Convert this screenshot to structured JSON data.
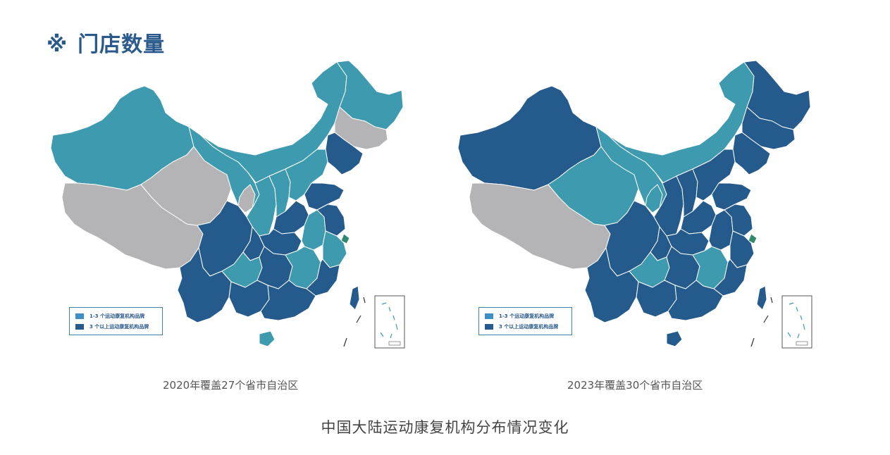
{
  "header": {
    "mark": "※",
    "title": "门店数量"
  },
  "colors": {
    "light": "#3e9aaf",
    "dark": "#245a8c",
    "gray": "#b4b4b6",
    "green": "#2e8a6a",
    "border": "#ffffff"
  },
  "legend": {
    "items": [
      {
        "label": "1-3 个运动康复机构品牌",
        "color": "#3f8fc7"
      },
      {
        "label": "3 个以上运动康复机构品牌",
        "color": "#245a8c"
      }
    ]
  },
  "maps": [
    {
      "caption": "2020年覆盖27个省市自治区",
      "regions": {
        "xinjiang": "light",
        "tibet": "gray",
        "qinghai": "gray",
        "gansu": "light",
        "inner_mongolia": "light",
        "heilongjiang": "light",
        "jilin": "gray",
        "liaoning": "dark",
        "ningxia": "gray",
        "shaanxi": "light",
        "shanxi": "light",
        "hebei": "light",
        "shandong": "dark",
        "henan": "dark",
        "sichuan": "dark",
        "chongqing": "dark",
        "hubei": "dark",
        "anhui": "light",
        "jiangsu": "dark",
        "shanghai": "green",
        "zhejiang": "light",
        "yunnan": "dark",
        "guizhou": "light",
        "hunan": "dark",
        "jiangxi": "light",
        "fujian": "dark",
        "guangxi": "dark",
        "guangdong": "dark",
        "hainan": "light",
        "taiwan": "dark"
      }
    },
    {
      "caption": "2023年覆盖30个省市自治区",
      "regions": {
        "xinjiang": "dark",
        "tibet": "gray",
        "qinghai": "light",
        "gansu": "light",
        "inner_mongolia": "light",
        "heilongjiang": "dark",
        "jilin": "dark",
        "liaoning": "dark",
        "ningxia": "light",
        "shaanxi": "dark",
        "shanxi": "dark",
        "hebei": "dark",
        "shandong": "dark",
        "henan": "dark",
        "sichuan": "dark",
        "chongqing": "dark",
        "hubei": "dark",
        "anhui": "dark",
        "jiangsu": "dark",
        "shanghai": "green",
        "zhejiang": "dark",
        "yunnan": "dark",
        "guizhou": "light",
        "hunan": "dark",
        "jiangxi": "light",
        "fujian": "dark",
        "guangxi": "dark",
        "guangdong": "dark",
        "hainan": "dark",
        "taiwan": "dark"
      }
    }
  ],
  "footer": {
    "title": "中国大陆运动康复机构分布情况变化"
  }
}
